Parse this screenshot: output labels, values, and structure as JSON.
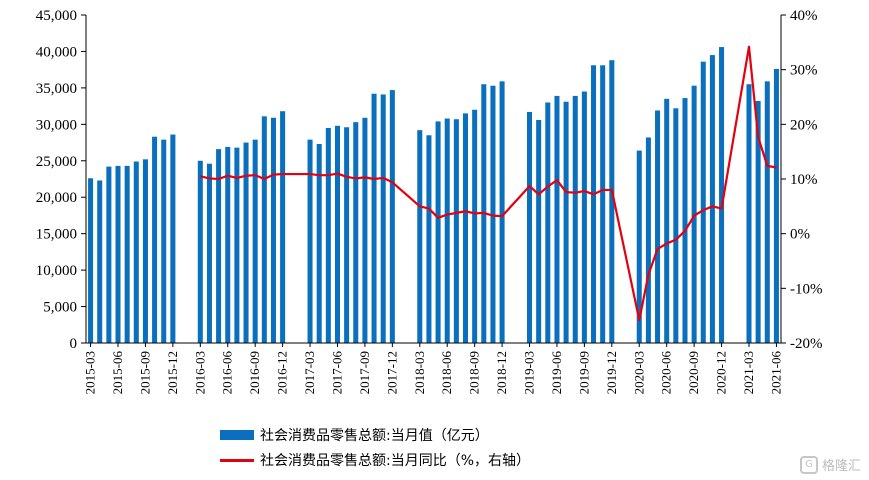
{
  "chart_data": {
    "type": "bar",
    "x": [
      "2015-03",
      "2015-04",
      "2015-05",
      "2015-06",
      "2015-07",
      "2015-08",
      "2015-09",
      "2015-10",
      "2015-11",
      "2015-12",
      "2016-03",
      "2016-04",
      "2016-05",
      "2016-06",
      "2016-07",
      "2016-08",
      "2016-09",
      "2016-10",
      "2016-11",
      "2016-12",
      "2017-03",
      "2017-04",
      "2017-05",
      "2017-06",
      "2017-07",
      "2017-08",
      "2017-09",
      "2017-10",
      "2017-11",
      "2017-12",
      "2018-03",
      "2018-04",
      "2018-05",
      "2018-06",
      "2018-07",
      "2018-08",
      "2018-09",
      "2018-10",
      "2018-11",
      "2018-12",
      "2019-03",
      "2019-04",
      "2019-05",
      "2019-06",
      "2019-07",
      "2019-08",
      "2019-09",
      "2019-10",
      "2019-11",
      "2019-12",
      "2020-03",
      "2020-04",
      "2020-05",
      "2020-06",
      "2020-07",
      "2020-08",
      "2020-09",
      "2020-10",
      "2020-11",
      "2020-12",
      "2021-03",
      "2021-04",
      "2021-05",
      "2021-06"
    ],
    "series": [
      {
        "name": "社会消费品零售总额:当月值（亿元）",
        "type": "bar",
        "axis": "left",
        "color": "#0a70bd",
        "values": [
          22600,
          22300,
          24200,
          24300,
          24300,
          24900,
          25200,
          28300,
          27900,
          28600,
          25000,
          24600,
          26600,
          26900,
          26800,
          27500,
          27900,
          31100,
          30900,
          31800,
          27900,
          27300,
          29500,
          29800,
          29600,
          30300,
          30900,
          34200,
          34100,
          34700,
          29200,
          28500,
          30400,
          30800,
          30700,
          31500,
          32000,
          35500,
          35300,
          35900,
          31700,
          30600,
          33000,
          33900,
          33100,
          33900,
          34500,
          38100,
          38100,
          38800,
          26400,
          28200,
          31900,
          33500,
          32200,
          33600,
          35300,
          38600,
          39500,
          40600,
          35500,
          33200,
          35900,
          37600
        ]
      },
      {
        "name": "社会消费品零售总额:当月同比（%，右轴）",
        "type": "line",
        "axis": "right",
        "color": "#e3000f",
        "values": [
          null,
          null,
          null,
          null,
          null,
          null,
          null,
          null,
          null,
          null,
          10.5,
          10.1,
          10.0,
          10.6,
          10.2,
          10.6,
          10.7,
          10.0,
          10.8,
          10.9,
          10.9,
          10.7,
          10.7,
          11.0,
          10.4,
          10.1,
          10.3,
          10.0,
          10.2,
          9.4,
          5.0,
          4.6,
          2.9,
          3.5,
          3.8,
          4.1,
          3.7,
          3.8,
          3.3,
          3.2,
          8.7,
          7.2,
          8.6,
          9.8,
          7.6,
          7.5,
          7.8,
          7.2,
          8.0,
          8.0,
          -15.8,
          -7.5,
          -2.8,
          -1.8,
          -1.1,
          0.5,
          3.3,
          4.3,
          5.0,
          4.6,
          34.2,
          17.7,
          12.4,
          12.1
        ]
      }
    ],
    "yleft": {
      "ylim": [
        0,
        45000
      ],
      "ticks": [
        0,
        5000,
        10000,
        15000,
        20000,
        25000,
        30000,
        35000,
        40000,
        45000
      ],
      "tick_labels": [
        "0",
        "5,000",
        "10,000",
        "15,000",
        "20,000",
        "25,000",
        "30,000",
        "35,000",
        "40,000",
        "45,000"
      ]
    },
    "yright": {
      "ylim": [
        -20,
        40
      ],
      "ticks": [
        -20,
        -10,
        0,
        10,
        20,
        30,
        40
      ],
      "tick_labels": [
        "-20%",
        "-10%",
        "0%",
        "10%",
        "20%",
        "30%",
        "40%"
      ]
    },
    "xtick_labels": [
      "2015-03",
      "2015-06",
      "2015-09",
      "2015-12",
      "2016-03",
      "2016-06",
      "2016-09",
      "2016-12",
      "2017-03",
      "2017-06",
      "2017-09",
      "2017-12",
      "2018-03",
      "2018-06",
      "2018-09",
      "2018-12",
      "2019-03",
      "2019-06",
      "2019-09",
      "2019-12",
      "2020-03",
      "2020-06",
      "2020-09",
      "2020-12",
      "2021-03",
      "2021-06"
    ],
    "grid": false,
    "legend_position": "bottom"
  },
  "legend": {
    "bar_label": "社会消费品零售总额:当月值（亿元）",
    "line_label": "社会消费品零售总额:当月同比（%，右轴）"
  },
  "watermark": {
    "text": "格隆汇"
  }
}
